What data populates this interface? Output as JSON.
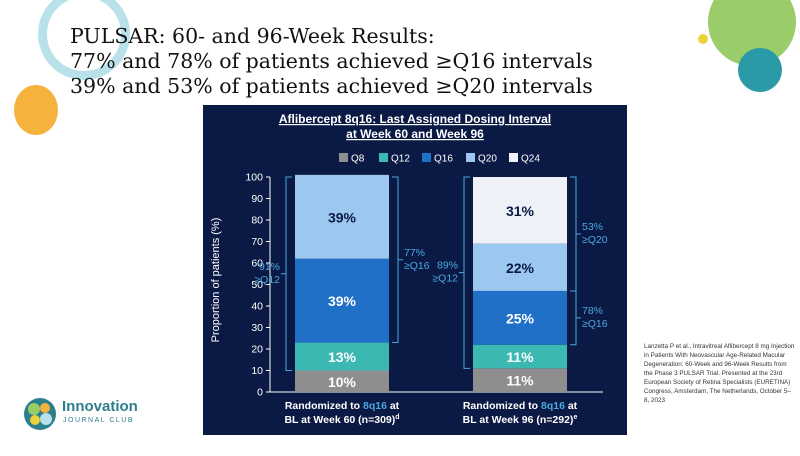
{
  "slide": {
    "title_lines": [
      "PULSAR: 60- and 96-Week Results:",
      "77% and 78% of patients achieved ≥Q16 intervals",
      "39% and 53% of patients achieved ≥Q20 intervals"
    ],
    "citation": "Lanzetta P et al., Intravitreal Aflibercept 8 mg Injection in Patients With Neovascular Age-Related Macular Degeneration: 60-Week and 96-Week Results from the Phase 3 PULSAR Trial. Presented at the 23rd European Society of Retina Specialists (EURETINA) Congress, Amsterdam, The Netherlands, October 5–8, 2023",
    "logo": {
      "name": "Innovation",
      "subtitle": "JOURNAL CLUB"
    }
  },
  "colors": {
    "Q8": "#8e8e8e",
    "Q12": "#3cb8b2",
    "Q16": "#1f70c6",
    "Q20": "#9cc7ee",
    "Q24": "#eef1f7",
    "panel": "#0b1a45",
    "annotation": "#4aa8dc",
    "bracket": "#4aa8dc",
    "deco_ring": "#b9e1ea",
    "deco_orange": "#f5b23c",
    "deco_green": "#9acd6a",
    "deco_teal": "#2a9aa6",
    "deco_yellow": "#ead23c"
  },
  "chart_data": {
    "type": "bar",
    "stacked": true,
    "title": "Aflibercept 8q16: Last Assigned Dosing Interval at Week 60 and Week 96",
    "title_lines": [
      "Aflibercept 8q16: Last Assigned Dosing Interval",
      "at Week 60 and Week 96"
    ],
    "ylabel": "Proportion of patients (%)",
    "xlabel": "",
    "ylim": [
      0,
      100
    ],
    "yticks": [
      0,
      10,
      20,
      30,
      40,
      50,
      60,
      70,
      80,
      90,
      100
    ],
    "legend": [
      "Q8",
      "Q12",
      "Q16",
      "Q20",
      "Q24"
    ],
    "legend_position": "top",
    "categories": [
      {
        "line1_pre": "Randomized to ",
        "line1_hl": "8q16",
        "line1_post": " at",
        "line2": "BL at Week 60 (n=309)",
        "sup": "d"
      },
      {
        "line1_pre": "Randomized to ",
        "line1_hl": "8q16",
        "line1_post": " at",
        "line2": "BL at Week 96 (n=292)",
        "sup": "e"
      }
    ],
    "series": [
      {
        "name": "Q8",
        "values": [
          10,
          11
        ],
        "labels": [
          "10%",
          "11%"
        ]
      },
      {
        "name": "Q12",
        "values": [
          13,
          11
        ],
        "labels": [
          "13%",
          "11%"
        ]
      },
      {
        "name": "Q16",
        "values": [
          39,
          25
        ],
        "labels": [
          "39%",
          "25%"
        ]
      },
      {
        "name": "Q20",
        "values": [
          39,
          22
        ],
        "labels": [
          "39%",
          "22%"
        ]
      },
      {
        "name": "Q24",
        "values": [
          0,
          31
        ],
        "labels": [
          "",
          "31%"
        ]
      }
    ],
    "annotations": [
      {
        "bar": 0,
        "side": "left",
        "from": 10,
        "to": 100,
        "line1": "91%",
        "line2": "≥Q12"
      },
      {
        "bar": 0,
        "side": "right",
        "from": 23,
        "to": 100,
        "line1": "77%",
        "line2": "≥Q16"
      },
      {
        "bar": 1,
        "side": "left",
        "from": 11,
        "to": 100,
        "line1": "89%",
        "line2": "≥Q12"
      },
      {
        "bar": 1,
        "side": "right",
        "from": 47,
        "to": 100,
        "line1": "53%",
        "line2": "≥Q20"
      },
      {
        "bar": 1,
        "side": "right",
        "from": 22,
        "to": 47,
        "line1": "78%",
        "line2": "≥Q16"
      }
    ]
  }
}
